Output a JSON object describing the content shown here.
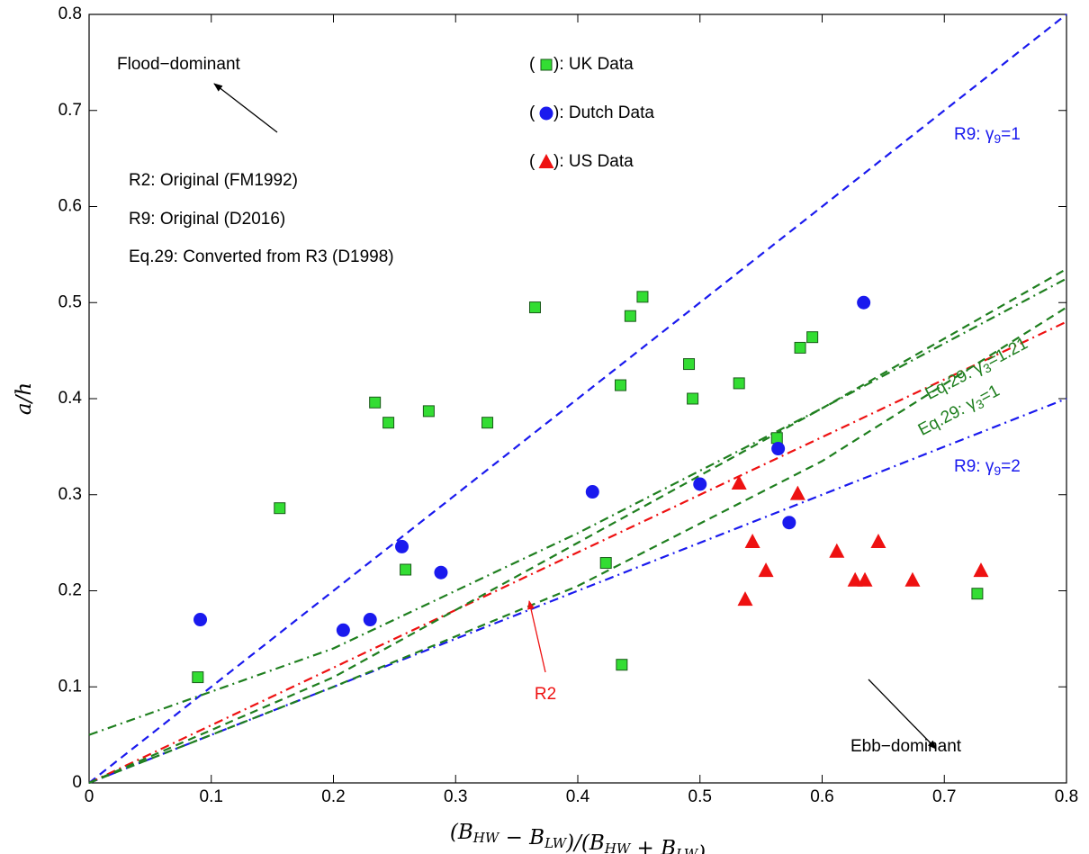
{
  "chart_data": {
    "type": "scatter",
    "xlabel": [
      [
        "(B",
        "HW"
      ],
      [
        " − B",
        "LW"
      ],
      [
        ")/(B",
        "HW"
      ],
      [
        " + B",
        "LW"
      ],
      [
        ")",
        null
      ]
    ],
    "ylabel": "a/h",
    "xlim": [
      0,
      0.8
    ],
    "ylim": [
      0,
      0.8
    ],
    "xticks": [
      0,
      0.1,
      0.2,
      0.3,
      0.4,
      0.5,
      0.6,
      0.7,
      0.8
    ],
    "yticks": [
      0,
      0.1,
      0.2,
      0.3,
      0.4,
      0.5,
      0.6,
      0.7,
      0.8
    ],
    "grid": false,
    "legend_format": [
      "(",
      "): "
    ],
    "series": [
      {
        "name": "UK Data",
        "marker": "square",
        "color": "#33dd33",
        "x": [
          0.089,
          0.156,
          0.234,
          0.245,
          0.259,
          0.278,
          0.326,
          0.365,
          0.423,
          0.435,
          0.436,
          0.443,
          0.453,
          0.491,
          0.494,
          0.532,
          0.563,
          0.582,
          0.592,
          0.727
        ],
        "values": [
          0.11,
          0.286,
          0.396,
          0.375,
          0.222,
          0.387,
          0.375,
          0.495,
          0.229,
          0.414,
          0.123,
          0.486,
          0.506,
          0.436,
          0.4,
          0.416,
          0.359,
          0.453,
          0.464,
          0.197
        ]
      },
      {
        "name": "Dutch Data",
        "marker": "circle",
        "color": "#1a1aee",
        "x": [
          0.091,
          0.208,
          0.23,
          0.256,
          0.288,
          0.412,
          0.5,
          0.564,
          0.573,
          0.634
        ],
        "values": [
          0.17,
          0.159,
          0.17,
          0.246,
          0.219,
          0.303,
          0.311,
          0.348,
          0.271,
          0.5
        ]
      },
      {
        "name": "US Data",
        "marker": "triangle",
        "color": "#ee1111",
        "x": [
          0.532,
          0.537,
          0.543,
          0.554,
          0.58,
          0.612,
          0.627,
          0.635,
          0.646,
          0.674,
          0.73
        ],
        "values": [
          0.312,
          0.191,
          0.251,
          0.221,
          0.301,
          0.241,
          0.211,
          0.211,
          0.251,
          0.211,
          0.221
        ]
      },
      {
        "label": [
          "R9: γ",
          "9",
          "=1"
        ],
        "style": "dashed",
        "color": "#1a1aee",
        "x": [
          0,
          0.8
        ],
        "values": [
          0,
          0.8
        ]
      },
      {
        "label": [
          "R9: γ",
          "9",
          "=2"
        ],
        "style": "dashdot",
        "color": "#1a1aee",
        "x": [
          0,
          0.8
        ],
        "values": [
          0,
          0.4
        ]
      },
      {
        "label": [
          "R2",
          null,
          null
        ],
        "style": "dashdot",
        "color": "#ee1111",
        "x": [
          0,
          0.8
        ],
        "values": [
          0,
          0.48
        ]
      },
      {
        "label": [
          "Eq.29: γ",
          "3",
          "=1.21"
        ],
        "style": "dashed",
        "color": "#1f7f1f",
        "x": [
          0,
          0.2,
          0.4,
          0.6,
          0.8
        ],
        "values": [
          0,
          0.11,
          0.25,
          0.39,
          0.535
        ]
      },
      {
        "label": [
          "Eq.29: γ",
          "3",
          "=1"
        ],
        "style": "dashed",
        "color": "#1f7f1f",
        "x": [
          0,
          0.2,
          0.4,
          0.6,
          0.8
        ],
        "values": [
          0,
          0.1,
          0.205,
          0.335,
          0.495
        ]
      },
      {
        "style": "dashdot",
        "color": "#1f7f1f",
        "x": [
          0,
          0.2,
          0.4,
          0.6,
          0.8
        ],
        "values": [
          0.05,
          0.14,
          0.26,
          0.39,
          0.525
        ]
      }
    ],
    "annotations": [
      "Flood−dominant",
      "Ebb−dominant",
      "R2: Original (FM1992)",
      "R9: Original (D2016)",
      "Eq.29: Converted from R3 (D1998)"
    ]
  }
}
